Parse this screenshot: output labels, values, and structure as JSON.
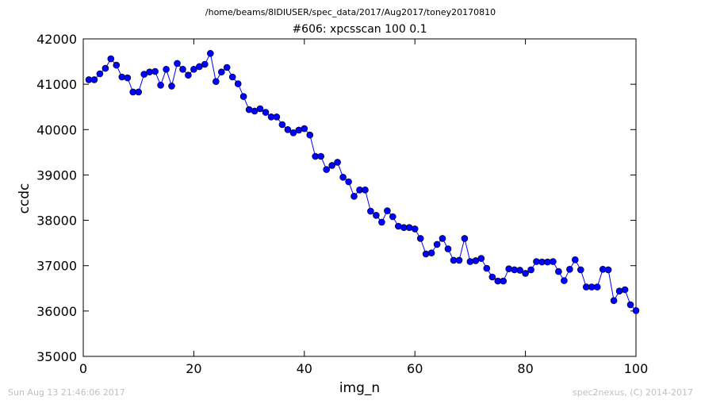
{
  "figure": {
    "suptitle": "/home/beams/8IDIUSER/spec_data/2017/Aug2017/toney20170810",
    "footer_left": "Sun Aug 13 21:46:06 2017",
    "footer_right": "spec2nexus, (C) 2014-2017"
  },
  "colors": {
    "series": "#0000ff",
    "marker_edge": "#000000",
    "axes": "#000000",
    "footer": "#bfbfbf"
  },
  "chart_data": {
    "type": "line",
    "title": "#606: xpcsscan 100 0.1",
    "xlabel": "img_n",
    "ylabel": "ccdc",
    "xlim": [
      0,
      100
    ],
    "ylim": [
      35000,
      42000
    ],
    "xticks": [
      0,
      20,
      40,
      60,
      80,
      100
    ],
    "yticks": [
      35000,
      36000,
      37000,
      38000,
      39000,
      40000,
      41000,
      42000
    ],
    "grid": false,
    "series": [
      {
        "marker": "circle",
        "x": [
          1,
          2,
          3,
          4,
          5,
          6,
          7,
          8,
          9,
          10,
          11,
          12,
          13,
          14,
          15,
          16,
          17,
          18,
          19,
          20,
          21,
          22,
          23,
          24,
          25,
          26,
          27,
          28,
          29,
          30,
          31,
          32,
          33,
          34,
          35,
          36,
          37,
          38,
          39,
          40,
          41,
          42,
          43,
          44,
          45,
          46,
          47,
          48,
          49,
          50,
          51,
          52,
          53,
          54,
          55,
          56,
          57,
          58,
          59,
          60,
          61,
          62,
          63,
          64,
          65,
          66,
          67,
          68,
          69,
          70,
          71,
          72,
          73,
          74,
          75,
          76,
          77,
          78,
          79,
          80,
          81,
          82,
          83,
          84,
          85,
          86,
          87,
          88,
          89,
          90,
          91,
          92,
          93,
          94,
          95,
          96,
          97,
          98,
          99,
          100
        ],
        "y": [
          41100,
          41100,
          41230,
          41350,
          41560,
          41420,
          41160,
          41140,
          40830,
          40830,
          41220,
          41270,
          41280,
          40980,
          41330,
          40960,
          41460,
          41330,
          41200,
          41330,
          41390,
          41440,
          41680,
          41060,
          41270,
          41370,
          41160,
          41010,
          40730,
          40440,
          40410,
          40460,
          40380,
          40280,
          40280,
          40110,
          40000,
          39930,
          39990,
          40020,
          39880,
          39410,
          39410,
          39120,
          39210,
          39280,
          38950,
          38850,
          38530,
          38670,
          38670,
          38200,
          38110,
          37960,
          38210,
          38080,
          37870,
          37840,
          37840,
          37810,
          37600,
          37260,
          37280,
          37470,
          37600,
          37370,
          37120,
          37120,
          37600,
          37090,
          37110,
          37160,
          36940,
          36750,
          36660,
          36660,
          36930,
          36910,
          36900,
          36830,
          36910,
          37090,
          37080,
          37080,
          37090,
          36870,
          36670,
          36920,
          37130,
          36910,
          36530,
          36530,
          36530,
          36920,
          36910,
          36230,
          36440,
          36470,
          36140,
          36010
        ]
      }
    ]
  }
}
